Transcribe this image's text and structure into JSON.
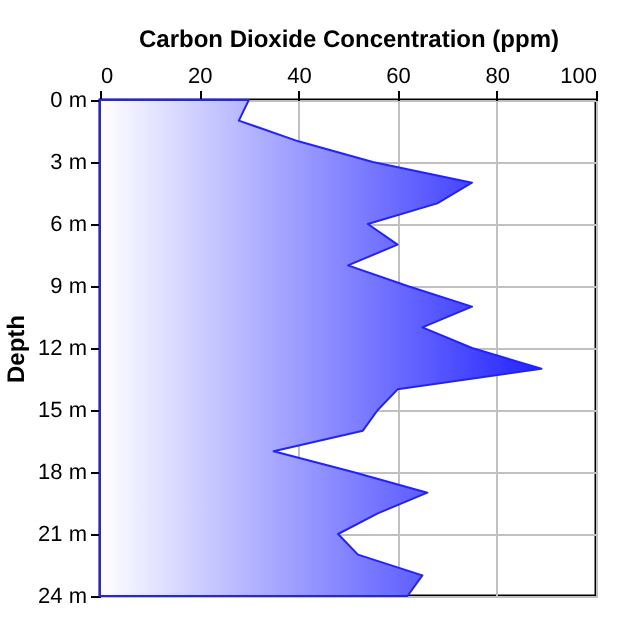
{
  "chart_data": {
    "type": "area",
    "orientation": "horizontal",
    "xlabel": "Carbon Dioxide Concentration (ppm)",
    "ylabel": "Depth",
    "x": [
      0,
      1,
      2,
      3,
      4,
      5,
      6,
      7,
      8,
      9,
      10,
      11,
      12,
      13,
      14,
      15,
      16,
      17,
      18,
      19,
      20,
      21,
      22,
      23,
      24
    ],
    "values": [
      30,
      28,
      40,
      55,
      75,
      68,
      54,
      60,
      50,
      62,
      75,
      65,
      75,
      89,
      60,
      56,
      53,
      35,
      51,
      66,
      56,
      48,
      52,
      65,
      62
    ],
    "color": "#2222ff",
    "xlim": [
      0,
      100
    ],
    "xticks": [
      0,
      20,
      40,
      60,
      80,
      100
    ],
    "ylim": [
      24,
      0
    ],
    "yticks": [
      {
        "value": 0,
        "label": "0 m"
      },
      {
        "value": 3,
        "label": "3 m"
      },
      {
        "value": 6,
        "label": "6 m"
      },
      {
        "value": 9,
        "label": "9 m"
      },
      {
        "value": 12,
        "label": "12 m"
      },
      {
        "value": 15,
        "label": "15 m"
      },
      {
        "value": 18,
        "label": "18 m"
      },
      {
        "value": 21,
        "label": "21 m"
      },
      {
        "value": 24,
        "label": "24 m"
      }
    ],
    "grid": true
  }
}
